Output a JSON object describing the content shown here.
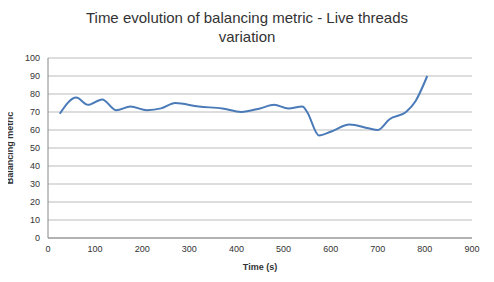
{
  "chart_data": {
    "type": "line",
    "title": "Time evolution of balancing metric - Live threads variation",
    "x_label": "Time (s)",
    "y_label": "Balancing metric",
    "x": [
      25,
      60,
      85,
      115,
      145,
      175,
      210,
      240,
      270,
      320,
      370,
      410,
      450,
      480,
      510,
      540,
      550,
      575,
      600,
      640,
      680,
      700,
      725,
      760,
      780,
      805
    ],
    "values": [
      69,
      78,
      74,
      77,
      71,
      73,
      71,
      72,
      75,
      73,
      72,
      70,
      72,
      74,
      72,
      73,
      70,
      57,
      59,
      63,
      61,
      60,
      66,
      70,
      76,
      90
    ],
    "color": "#4a7ab8",
    "xlim": [
      0,
      900
    ],
    "xticks": [
      0,
      100,
      200,
      300,
      400,
      500,
      600,
      700,
      800,
      900
    ],
    "ylim": [
      0,
      100
    ],
    "yticks": [
      0,
      10,
      20,
      30,
      40,
      50,
      60,
      70,
      80,
      90,
      100
    ],
    "grid": true
  }
}
